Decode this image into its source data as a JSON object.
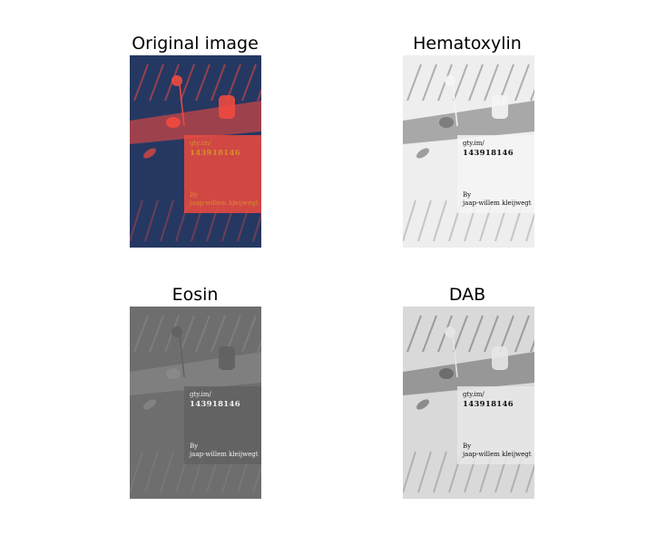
{
  "panels": [
    {
      "title": "Original image",
      "overlay": {
        "handle": "gty.im/",
        "number": "143918146",
        "by": "By",
        "author": "jaap-willem kleijwegt"
      },
      "colors": {
        "bg": "#253862",
        "fg": "#ef4a3f",
        "lower": "#ef4a3f",
        "text": "#d98c2f"
      }
    },
    {
      "title": "Hematoxylin",
      "overlay": {
        "handle": "gty.im/",
        "number": "143918146",
        "by": "By",
        "author": "jaap-willem kleijwegt"
      },
      "colors": {
        "bg": "#eeeeee",
        "fg": "#7a7a7a",
        "lower": "#f4f4f4",
        "text": "#111111"
      }
    },
    {
      "title": "Eosin",
      "overlay": {
        "handle": "gty.im/",
        "number": "143918146",
        "by": "By",
        "author": "jaap-willem kleijwegt"
      },
      "colors": {
        "bg": "#6e6e6e",
        "fg": "#8a8a8a",
        "lower": "#616161",
        "text": "#f2f2f2"
      }
    },
    {
      "title": "DAB",
      "overlay": {
        "handle": "gty.im/",
        "number": "143918146",
        "by": "By",
        "author": "jaap-willem kleijwegt"
      },
      "colors": {
        "bg": "#d9d9d9",
        "fg": "#6a6a6a",
        "lower": "#e6e6e6",
        "text": "#111111"
      }
    }
  ]
}
